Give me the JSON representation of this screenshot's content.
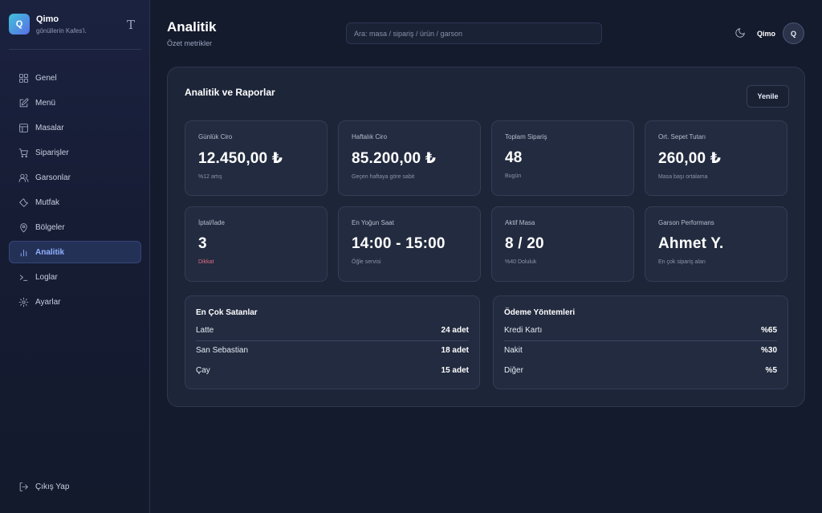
{
  "brand": {
    "initial": "Q",
    "name": "Qimo",
    "subtitle": "gönüllerin Kafes'i."
  },
  "sidebar": {
    "items": [
      {
        "label": "Genel",
        "icon": "grid-icon"
      },
      {
        "label": "Menü",
        "icon": "edit-icon"
      },
      {
        "label": "Masalar",
        "icon": "table-icon"
      },
      {
        "label": "Siparişler",
        "icon": "cart-icon"
      },
      {
        "label": "Garsonlar",
        "icon": "users-icon"
      },
      {
        "label": "Mutfak",
        "icon": "wrench-icon"
      },
      {
        "label": "Bölgeler",
        "icon": "map-pin-icon"
      },
      {
        "label": "Analitik",
        "icon": "bar-chart-icon",
        "active": true
      },
      {
        "label": "Loglar",
        "icon": "terminal-icon"
      },
      {
        "label": "Ayarlar",
        "icon": "gear-icon"
      }
    ],
    "logout_label": "Çıkış Yap"
  },
  "header": {
    "title": "Analitik",
    "subtitle": "Özet metrikler",
    "search_placeholder": "Ara: masa / sipariş / ürün / garson",
    "user_name": "Qimo",
    "avatar_initial": "Q"
  },
  "panel": {
    "title": "Analitik ve Raporlar",
    "refresh_label": "Yenile",
    "cards": [
      {
        "label": "Günlük Ciro",
        "value": "12.450,00 ₺",
        "note": "%12 artış"
      },
      {
        "label": "Haftalık Ciro",
        "value": "85.200,00 ₺",
        "note": "Geçen haftaya göre sabit"
      },
      {
        "label": "Toplam Sipariş",
        "value": "48",
        "note": "Bugün"
      },
      {
        "label": "Ort. Sepet Tutarı",
        "value": "260,00 ₺",
        "note": "Masa başı ortalama"
      },
      {
        "label": "İptal/İade",
        "value": "3",
        "note": "Dikkat",
        "note_color": "#e06b83"
      },
      {
        "label": "En Yoğun Saat",
        "value": "14:00 - 15:00",
        "note": "Öğle servisi"
      },
      {
        "label": "Aktif Masa",
        "value": "8 / 20",
        "note": "%40 Doluluk"
      },
      {
        "label": "Garson Performans",
        "value": "Ahmet Y.",
        "note": "En çok sipariş alan"
      }
    ],
    "best_sellers": {
      "title": "En Çok Satanlar",
      "rows": [
        {
          "name": "Latte",
          "value": "24 adet"
        },
        {
          "name": "San Sebastian",
          "value": "18 adet"
        },
        {
          "name": "Çay",
          "value": "15 adet"
        }
      ]
    },
    "payment_methods": {
      "title": "Ödeme Yöntemleri",
      "rows": [
        {
          "name": "Kredi Kartı",
          "value": "%65"
        },
        {
          "name": "Nakit",
          "value": "%30"
        },
        {
          "name": "Diğer",
          "value": "%5"
        }
      ]
    }
  },
  "colors": {
    "accent": "#8fb0ff",
    "warning": "#e06b83",
    "background": "#141b2d"
  }
}
